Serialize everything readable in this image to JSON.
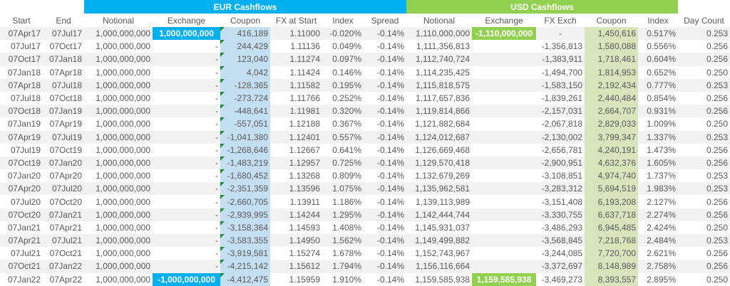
{
  "sections": {
    "eur": "EUR Cashflows",
    "usd": "USD Cashflows"
  },
  "headers": [
    "Start",
    "End",
    "Notional",
    "Exchange",
    "Coupon",
    "FX at Start",
    "Index",
    "Spread",
    "Notional",
    "Exchange",
    "FX Exch",
    "Coupon",
    "Index",
    "Day Count"
  ],
  "colors": {
    "eur_accent": "#00b0f0",
    "usd_accent": "#92d050",
    "eur_coupon_fill": "#c5dff2",
    "usd_coupon_fill": "#d8e4bc"
  },
  "rows": [
    [
      "07Apr17",
      "07Jul17",
      "1,000,000,000",
      "1,000,000,000",
      "416,189",
      "1.11000",
      "-0.020%",
      "-0.14%",
      "1,110,000,000",
      "-1,110,000,000",
      "-",
      "1,450,616",
      "0.517%",
      "0.253"
    ],
    [
      "07Jul17",
      "07Oct17",
      "1,000,000,000",
      "-",
      "244,429",
      "1.11136",
      "0.049%",
      "-0.14%",
      "1,111,356,813",
      "",
      "-1,356,813",
      "1,580,088",
      "0.556%",
      "0.256"
    ],
    [
      "07Oct17",
      "07Jan18",
      "1,000,000,000",
      "-",
      "123,040",
      "1.11274",
      "0.097%",
      "-0.14%",
      "1,112,740,724",
      "",
      "-1,383,911",
      "1,718,461",
      "0.604%",
      "0.256"
    ],
    [
      "07Jan18",
      "07Apr18",
      "1,000,000,000",
      "-",
      "4,042",
      "1.11424",
      "0.146%",
      "-0.14%",
      "1,114,235,425",
      "",
      "-1,494,700",
      "1,814,953",
      "0.652%",
      "0.250"
    ],
    [
      "07Apr18",
      "07Jul18",
      "1,000,000,000",
      "-",
      "-128,365",
      "1.11582",
      "0.195%",
      "-0.14%",
      "1,115,818,575",
      "",
      "-1,583,150",
      "2,192,434",
      "0.777%",
      "0.253"
    ],
    [
      "07Jul18",
      "07Oct18",
      "1,000,000,000",
      "-",
      "-273,724",
      "1.11766",
      "0.252%",
      "-0.14%",
      "1,117,657,836",
      "",
      "-1,839,261",
      "2,440,484",
      "0.854%",
      "0.256"
    ],
    [
      "07Oct18",
      "07Jan19",
      "1,000,000,000",
      "-",
      "-448,641",
      "1.11981",
      "0.320%",
      "-0.14%",
      "1,119,814,866",
      "",
      "-2,157,031",
      "2,664,707",
      "0.931%",
      "0.256"
    ],
    [
      "07Jan19",
      "07Apr19",
      "1,000,000,000",
      "-",
      "-557,051",
      "1.12188",
      "0.367%",
      "-0.14%",
      "1,121,882,684",
      "",
      "-2,067,818",
      "2,829,033",
      "1.009%",
      "0.250"
    ],
    [
      "07Apr19",
      "07Jul19",
      "1,000,000,000",
      "-",
      "-1,041,380",
      "1.12401",
      "0.557%",
      "-0.14%",
      "1,124,012,687",
      "",
      "-2,130,002",
      "3,799,347",
      "1.337%",
      "0.253"
    ],
    [
      "07Jul19",
      "07Oct19",
      "1,000,000,000",
      "-",
      "-1,268,646",
      "1.12667",
      "0.641%",
      "-0.14%",
      "1,126,669,468",
      "",
      "-2,656,781",
      "4,240,191",
      "1.473%",
      "0.256"
    ],
    [
      "07Oct19",
      "07Jan20",
      "1,000,000,000",
      "-",
      "-1,483,219",
      "1.12957",
      "0.725%",
      "-0.14%",
      "1,129,570,418",
      "",
      "-2,900,951",
      "4,632,376",
      "1.605%",
      "0.256"
    ],
    [
      "07Jan20",
      "07Apr20",
      "1,000,000,000",
      "-",
      "-1,680,452",
      "1.13268",
      "0.809%",
      "-0.14%",
      "1,132,679,269",
      "",
      "-3,108,851",
      "4,974,740",
      "1.737%",
      "0.253"
    ],
    [
      "07Apr20",
      "07Jul20",
      "1,000,000,000",
      "-",
      "-2,351,359",
      "1.13596",
      "1.075%",
      "-0.14%",
      "1,135,962,581",
      "",
      "-3,283,312",
      "5,694,519",
      "1.983%",
      "0.253"
    ],
    [
      "07Jul20",
      "07Oct20",
      "1,000,000,000",
      "-",
      "-2,660,705",
      "1.13911",
      "1.186%",
      "-0.14%",
      "1,139,113,989",
      "",
      "-3,151,408",
      "6,193,208",
      "2.127%",
      "0.256"
    ],
    [
      "07Oct20",
      "07Jan21",
      "1,000,000,000",
      "-",
      "-2,939,995",
      "1.14244",
      "1.295%",
      "-0.14%",
      "1,142,444,744",
      "",
      "-3,330,755",
      "6,637,718",
      "2.274%",
      "0.256"
    ],
    [
      "07Jan21",
      "07Apr21",
      "1,000,000,000",
      "-",
      "-3,158,364",
      "1.14593",
      "1.408%",
      "-0.14%",
      "1,145,931,037",
      "",
      "-3,486,293",
      "6,945,485",
      "2.424%",
      "0.250"
    ],
    [
      "07Apr21",
      "07Jul21",
      "1,000,000,000",
      "-",
      "-3,583,355",
      "1.14950",
      "1.562%",
      "-0.14%",
      "1,149,499,882",
      "",
      "-3,568,845",
      "7,218,768",
      "2.484%",
      "0.253"
    ],
    [
      "07Jul21",
      "07Oct21",
      "1,000,000,000",
      "-",
      "-3,919,581",
      "1.15274",
      "1.678%",
      "-0.14%",
      "1,152,743,967",
      "",
      "-3,244,085",
      "7,720,700",
      "2.621%",
      "0.256"
    ],
    [
      "07Oct21",
      "07Jan22",
      "1,000,000,000",
      "-",
      "-4,215,142",
      "1.15612",
      "1.794%",
      "-0.14%",
      "1,156,116,664",
      "",
      "-3,372,697",
      "8,148,989",
      "2.758%",
      "0.256"
    ],
    [
      "07Jan22",
      "07Apr22",
      "1,000,000,000",
      "-1,000,000,000",
      "-4,412,475",
      "1.15959",
      "1.910%",
      "-0.14%",
      "1,159,585,938",
      "1,159,585,938",
      "-3,469,273",
      "8,393,557",
      "2.895%",
      "0.250"
    ]
  ]
}
